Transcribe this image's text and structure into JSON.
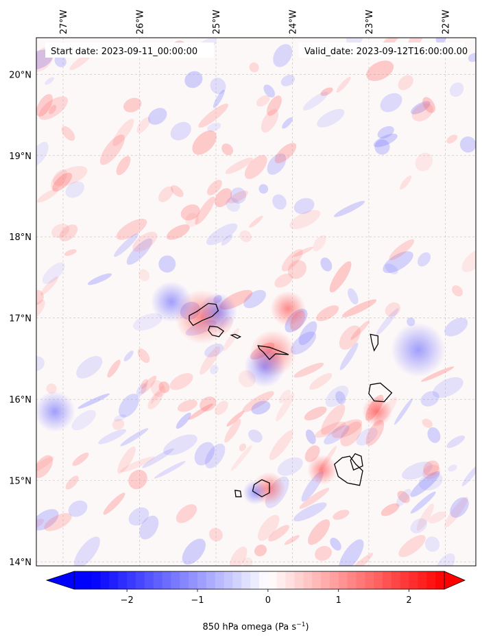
{
  "map": {
    "start_date": "Start date: 2023-09-11_00:00:00",
    "valid_date": "Valid_date: 2023-09-12T16:00:00.00",
    "lon_labels": [
      "27°W",
      "26°W",
      "25°W",
      "24°W",
      "23°W",
      "22°W"
    ],
    "lat_labels": [
      "20°N",
      "19°N",
      "18°N",
      "17°N",
      "16°N",
      "15°N",
      "14°N"
    ],
    "lon_values": [
      -27,
      -26,
      -25,
      -24,
      -23,
      -22
    ],
    "lat_values": [
      20,
      19,
      18,
      17,
      16,
      15,
      14
    ],
    "lon_range": [
      -27.35,
      -21.6
    ],
    "lat_range": [
      13.95,
      20.45
    ],
    "field": "850 hPa omega",
    "colormap": "bwr",
    "gridlines": true
  },
  "colorbar": {
    "label_main": "850 hPa omega (Pa s",
    "label_sup": "−1",
    "label_end": ")",
    "ticks": [
      "−2",
      "−1",
      "0",
      "1",
      "2"
    ],
    "tick_values": [
      -2,
      -1,
      0,
      1,
      2
    ],
    "range": [
      -2.75,
      2.5
    ],
    "extend": "both",
    "low_color": "#0000ff",
    "mid_color": "#ffffff",
    "high_color": "#ff0000"
  },
  "islands": [
    "Santo Antão",
    "São Vicente",
    "Santa Luzia",
    "São Nicolau",
    "Sal",
    "Boa Vista",
    "Maio",
    "Santiago",
    "Fogo",
    "Brava"
  ]
}
